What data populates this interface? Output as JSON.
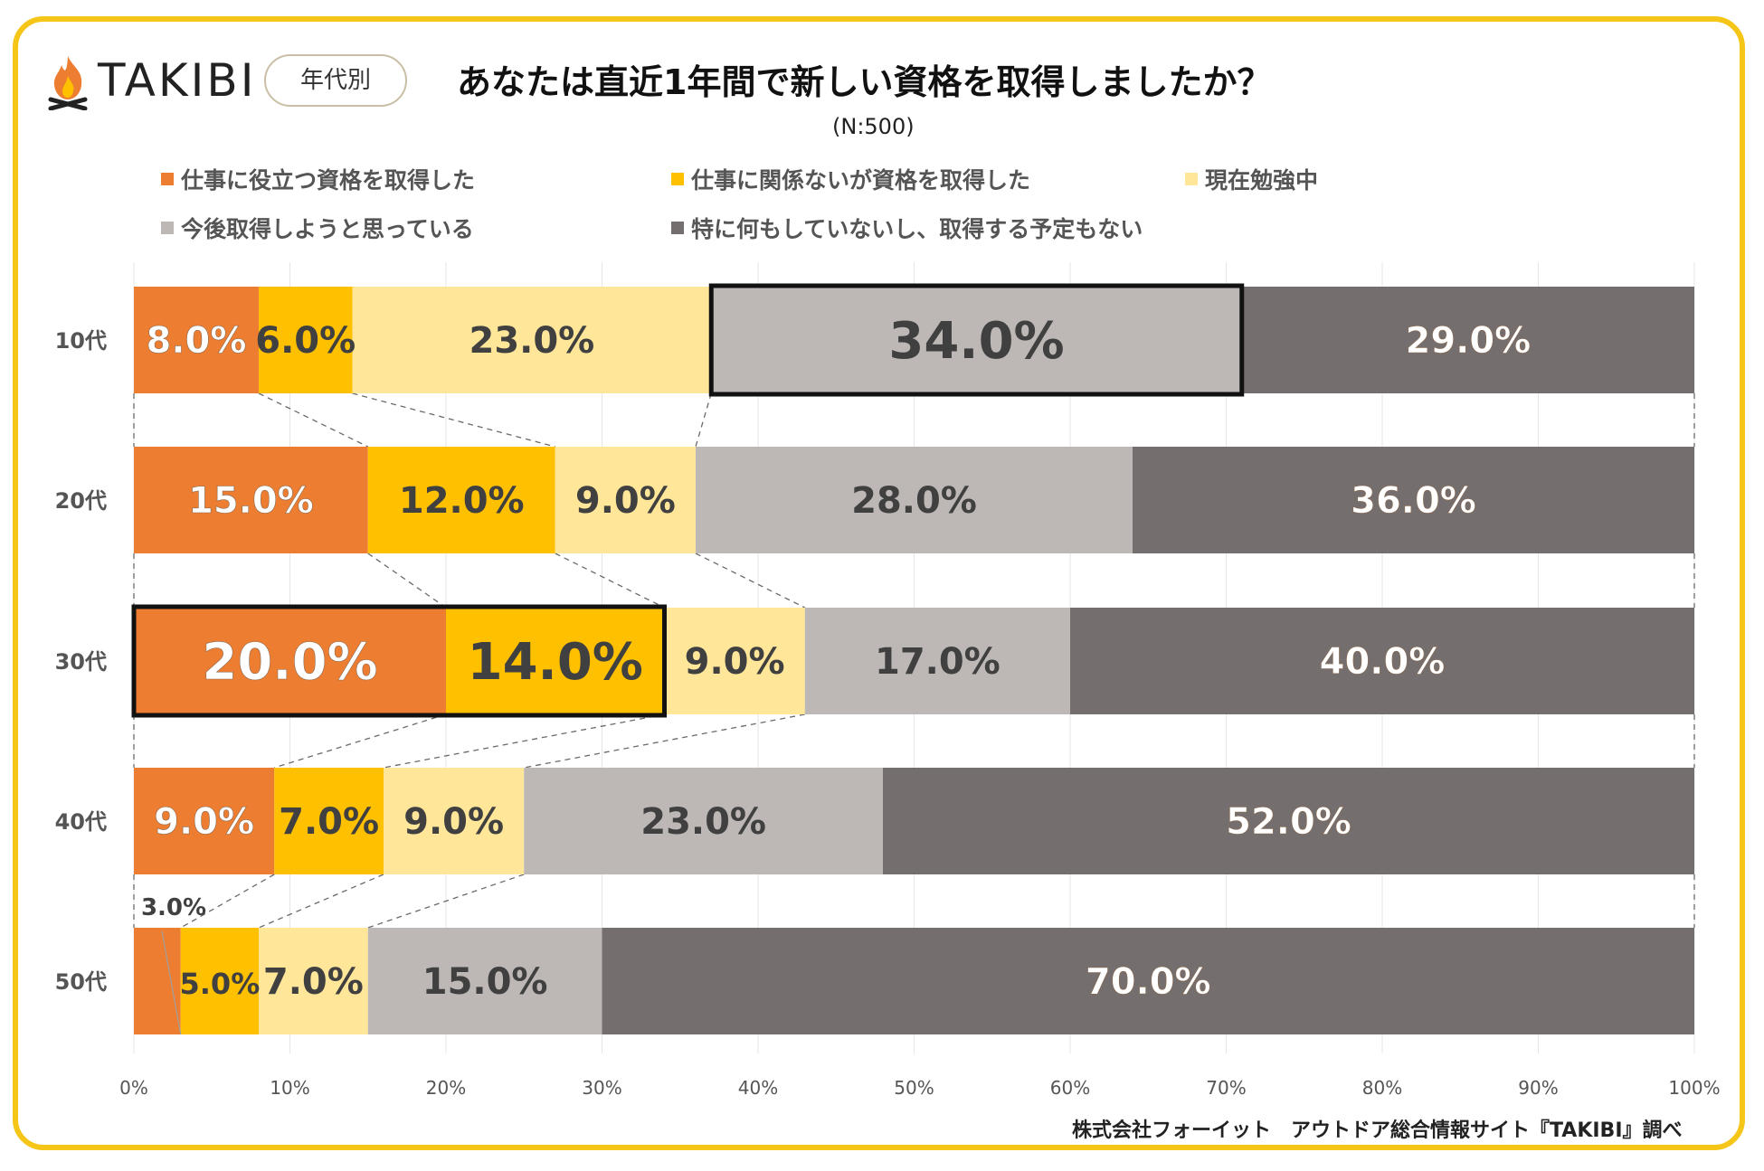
{
  "header": {
    "logo_text": "TAKIBI",
    "tag": "年代別",
    "title": "あなたは直近1年間で新しい資格を取得しましたか？",
    "subtitle": "(N:500)"
  },
  "colors": {
    "frame": "#f5c518",
    "series": [
      "#ed7d31",
      "#ffc000",
      "#ffe699",
      "#bdb8b6",
      "#756e6e"
    ]
  },
  "chart_data": {
    "type": "bar",
    "orientation": "horizontal",
    "stacked": true,
    "categories": [
      "10代",
      "20代",
      "30代",
      "40代",
      "50代"
    ],
    "series": [
      {
        "name": "仕事に役立つ資格を取得した",
        "values": [
          8,
          15,
          20,
          9,
          3
        ]
      },
      {
        "name": "仕事に関係ないが資格を取得した",
        "values": [
          6,
          12,
          14,
          7,
          5
        ]
      },
      {
        "name": "現在勉強中",
        "values": [
          23,
          9,
          9,
          9,
          7
        ]
      },
      {
        "name": "今後取得しようと思っている",
        "values": [
          34,
          28,
          17,
          23,
          15
        ]
      },
      {
        "name": "特に何もしていないし、取得する予定もない",
        "values": [
          29,
          36,
          40,
          52,
          70
        ]
      }
    ],
    "data_labels": [
      [
        "8.0%",
        "6.0%",
        "23.0%",
        "34.0%",
        "29.0%"
      ],
      [
        "15.0%",
        "12.0%",
        "9.0%",
        "28.0%",
        "36.0%"
      ],
      [
        "20.0%",
        "14.0%",
        "9.0%",
        "17.0%",
        "40.0%"
      ],
      [
        "9.0%",
        "7.0%",
        "9.0%",
        "23.0%",
        "52.0%"
      ],
      [
        "3.0%",
        "5.0%",
        "7.0%",
        "15.0%",
        "70.0%"
      ]
    ],
    "x_ticks": [
      "0%",
      "10%",
      "20%",
      "30%",
      "40%",
      "50%",
      "60%",
      "70%",
      "80%",
      "90%",
      "100%"
    ],
    "xlim": [
      0,
      100
    ],
    "legend_position": "top",
    "grid": true,
    "highlights": [
      {
        "category": "10代",
        "series": [
          3
        ]
      },
      {
        "category": "30代",
        "series": [
          0,
          1
        ]
      }
    ]
  },
  "footer": {
    "credit": "株式会社フォーイット　アウトドア総合情報サイト『TAKIBI』調べ"
  }
}
